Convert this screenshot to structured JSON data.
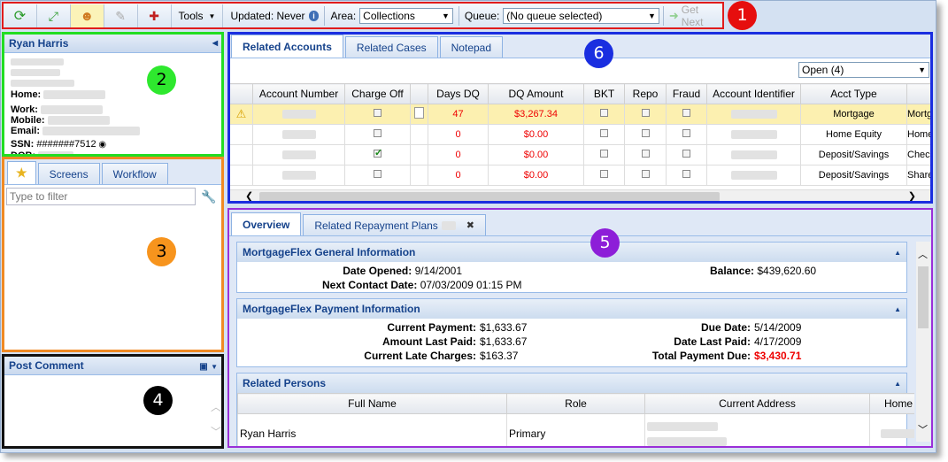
{
  "toolbar": {
    "tools_label": "Tools",
    "updated_label": "Updated: Never",
    "area_label": "Area:",
    "area_value": "Collections",
    "queue_label": "Queue:",
    "queue_value": "(No queue selected)",
    "get_next_label": "Get Next"
  },
  "customer": {
    "name": "Ryan Harris",
    "home_label": "Home:",
    "work_label": "Work:",
    "mobile_label": "Mobile:",
    "email_label": "Email:",
    "ssn_label": "SSN:",
    "ssn_value": "#######7512",
    "dob_label": "DOB:"
  },
  "nav": {
    "tabs": [
      "Screens",
      "Workflow"
    ],
    "filter_placeholder": "Type to filter"
  },
  "comment": {
    "title": "Post Comment"
  },
  "accounts": {
    "tabs": [
      "Related Accounts",
      "Related Cases",
      "Notepad"
    ],
    "filter_value": "Open (4)",
    "columns": [
      "Account Number",
      "Charge Off",
      "Days DQ",
      "DQ Amount",
      "BKT",
      "Repo",
      "Fraud",
      "Account Identifier",
      "Acct Type"
    ],
    "rows": [
      {
        "days": "47",
        "amount": "$3,267.34",
        "type": "Mortgage",
        "type2": "Mortg",
        "charge_off": false
      },
      {
        "days": "0",
        "amount": "$0.00",
        "type": "Home Equity",
        "type2": "Home",
        "charge_off": false
      },
      {
        "days": "0",
        "amount": "$0.00",
        "type": "Deposit/Savings",
        "type2": "Chec",
        "charge_off": true
      },
      {
        "days": "0",
        "amount": "$0.00",
        "type": "Deposit/Savings",
        "type2": "Share",
        "charge_off": false
      }
    ]
  },
  "detail": {
    "tabs": [
      "Overview",
      "Related Repayment Plans"
    ],
    "general": {
      "title": "MortgageFlex General Information",
      "date_opened_label": "Date Opened:",
      "date_opened": "9/14/2001",
      "next_contact_label": "Next Contact Date:",
      "next_contact": "07/03/2009 01:15 PM",
      "balance_label": "Balance:",
      "balance": "$439,620.60"
    },
    "payment": {
      "title": "MortgageFlex Payment Information",
      "current_payment_label": "Current Payment:",
      "current_payment": "$1,633.67",
      "amount_last_paid_label": "Amount Last Paid:",
      "amount_last_paid": "$1,633.67",
      "late_charges_label": "Current Late Charges:",
      "late_charges": "$163.37",
      "due_date_label": "Due Date:",
      "due_date": "5/14/2009",
      "date_last_paid_label": "Date Last Paid:",
      "date_last_paid": "4/17/2009",
      "total_due_label": "Total Payment Due:",
      "total_due": "$3,430.71"
    },
    "persons": {
      "title": "Related Persons",
      "columns": [
        "Full Name",
        "Role",
        "Current Address",
        "Home"
      ],
      "rows": [
        {
          "name": "Ryan Harris",
          "role": "Primary"
        }
      ]
    }
  },
  "callouts": [
    "1",
    "2",
    "3",
    "4",
    "5",
    "6"
  ],
  "colors": {
    "red_box": "#e01c1c",
    "green_box": "#22dd22",
    "orange_box": "#f08a24",
    "blue_box": "#1a2ee0",
    "purple_box": "#9a2fd8"
  }
}
